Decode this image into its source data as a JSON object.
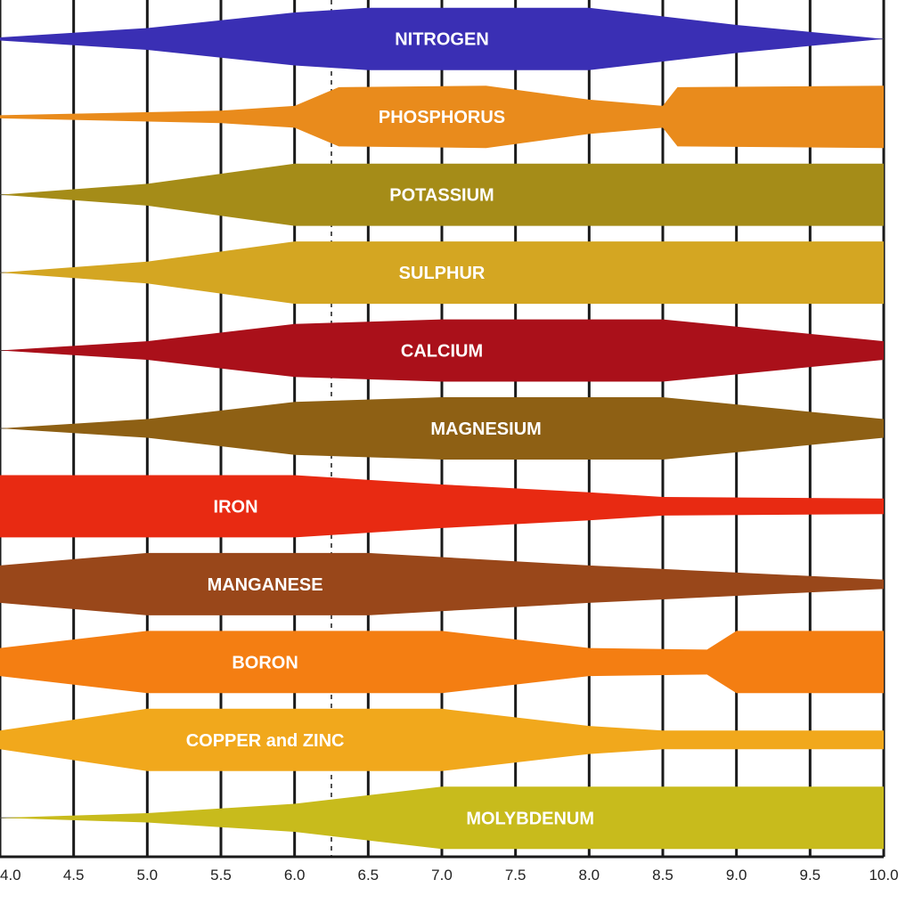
{
  "chart_data": {
    "type": "area",
    "title": "",
    "xlabel": "",
    "ylabel": "",
    "xlim": [
      4.0,
      10.0
    ],
    "x_ticks": [
      "4.0",
      "4.5",
      "5.0",
      "5.5",
      "6.0",
      "6.5",
      "7.0",
      "7.5",
      "8.0",
      "8.5",
      "9.0",
      "9.5",
      "10.0"
    ],
    "grid": true,
    "series": [
      {
        "name": "NITROGEN",
        "color": "#3a2fb4",
        "label_x": 7.0,
        "profile": [
          [
            4.0,
            0.05
          ],
          [
            5.0,
            0.35
          ],
          [
            6.0,
            0.85
          ],
          [
            6.5,
            1.0
          ],
          [
            8.0,
            1.0
          ],
          [
            9.0,
            0.45
          ],
          [
            10.0,
            0.0
          ]
        ]
      },
      {
        "name": "PHOSPHORUS",
        "color": "#e98b1c",
        "label_x": 7.0,
        "profile": [
          [
            4.0,
            0.05
          ],
          [
            5.5,
            0.2
          ],
          [
            6.0,
            0.35
          ],
          [
            6.3,
            0.95
          ],
          [
            7.3,
            1.0
          ],
          [
            8.0,
            0.55
          ],
          [
            8.5,
            0.35
          ],
          [
            8.6,
            0.95
          ],
          [
            10.0,
            1.0
          ]
        ]
      },
      {
        "name": "POTASSIUM",
        "color": "#a58c18",
        "label_x": 7.0,
        "profile": [
          [
            4.0,
            0.0
          ],
          [
            5.0,
            0.35
          ],
          [
            6.0,
            1.0
          ],
          [
            10.0,
            1.0
          ]
        ]
      },
      {
        "name": "SULPHUR",
        "color": "#d4a622",
        "label_x": 7.0,
        "profile": [
          [
            4.0,
            0.0
          ],
          [
            5.0,
            0.35
          ],
          [
            6.0,
            1.0
          ],
          [
            10.0,
            1.0
          ]
        ]
      },
      {
        "name": "CALCIUM",
        "color": "#aa101a",
        "label_x": 7.0,
        "profile": [
          [
            4.0,
            0.0
          ],
          [
            5.0,
            0.3
          ],
          [
            6.0,
            0.85
          ],
          [
            7.0,
            1.0
          ],
          [
            8.5,
            1.0
          ],
          [
            10.0,
            0.3
          ]
        ]
      },
      {
        "name": "MAGNESIUM",
        "color": "#8e6014",
        "label_x": 7.3,
        "profile": [
          [
            4.0,
            0.0
          ],
          [
            5.0,
            0.3
          ],
          [
            6.0,
            0.85
          ],
          [
            7.0,
            1.0
          ],
          [
            8.5,
            1.0
          ],
          [
            10.0,
            0.3
          ]
        ]
      },
      {
        "name": "IRON",
        "color": "#e82a12",
        "label_x": 5.6,
        "profile": [
          [
            4.0,
            1.0
          ],
          [
            6.0,
            1.0
          ],
          [
            7.0,
            0.7
          ],
          [
            8.0,
            0.45
          ],
          [
            8.5,
            0.3
          ],
          [
            10.0,
            0.25
          ]
        ]
      },
      {
        "name": "MANGANESE",
        "color": "#99471a",
        "label_x": 5.8,
        "profile": [
          [
            4.0,
            0.6
          ],
          [
            5.0,
            1.0
          ],
          [
            6.5,
            1.0
          ],
          [
            8.0,
            0.6
          ],
          [
            10.0,
            0.15
          ]
        ]
      },
      {
        "name": "BORON",
        "color": "#f47e12",
        "label_x": 5.8,
        "profile": [
          [
            4.0,
            0.45
          ],
          [
            5.0,
            1.0
          ],
          [
            7.0,
            1.0
          ],
          [
            8.0,
            0.45
          ],
          [
            8.8,
            0.4
          ],
          [
            9.0,
            1.0
          ],
          [
            10.0,
            1.0
          ]
        ]
      },
      {
        "name": "COPPER and ZINC",
        "color": "#f1a81c",
        "label_x": 5.8,
        "profile": [
          [
            4.0,
            0.3
          ],
          [
            5.0,
            1.0
          ],
          [
            7.0,
            1.0
          ],
          [
            8.0,
            0.45
          ],
          [
            8.5,
            0.3
          ],
          [
            10.0,
            0.3
          ]
        ]
      },
      {
        "name": "MOLYBDENUM",
        "color": "#c8bb1c",
        "label_x": 7.6,
        "profile": [
          [
            4.0,
            0.0
          ],
          [
            5.0,
            0.15
          ],
          [
            6.0,
            0.45
          ],
          [
            7.0,
            1.0
          ],
          [
            10.0,
            1.0
          ]
        ]
      }
    ]
  }
}
